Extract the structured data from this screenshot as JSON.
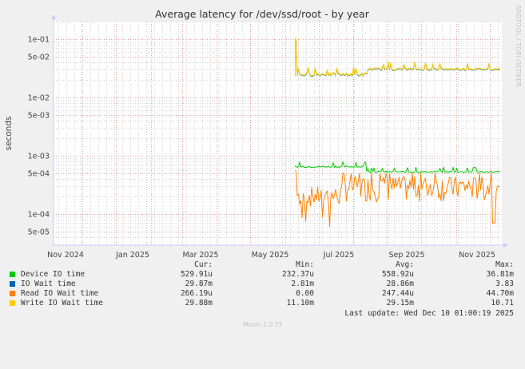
{
  "chart_data": {
    "type": "line",
    "title": "Average latency for /dev/ssd/root - by year",
    "xlabel": "",
    "ylabel": "seconds",
    "yscale": "log",
    "ylim": [
      3e-05,
      0.16
    ],
    "y_ticks": [
      "1e-01",
      "5e-02",
      "1e-02",
      "5e-03",
      "1e-03",
      "5e-04",
      "1e-04",
      "5e-05"
    ],
    "x_ticks": [
      "Nov 2024",
      "Jan 2025",
      "Mar 2025",
      "May 2025",
      "Jul 2025",
      "Sep 2025",
      "Nov 2025"
    ],
    "x_range": [
      "Oct 2024",
      "Dec 2025"
    ],
    "grid": true,
    "legend_position": "bottom",
    "series": [
      {
        "name": "Device IO time",
        "color": "#00cc00",
        "cur": "529.91u",
        "min": "232.37u",
        "avg": "558.92u",
        "max": "36.81m",
        "approx_level": 0.00055,
        "data_start": "late May 2025"
      },
      {
        "name": "IO Wait time",
        "color": "#0066b3",
        "cur": "29.87m",
        "min": "2.81m",
        "avg": "28.86m",
        "max": "3.83",
        "approx_level": 0.029,
        "data_start": "late May 2025"
      },
      {
        "name": "Read IO Wait time",
        "color": "#ff8000",
        "cur": "266.19u",
        "min": "0.00",
        "avg": "247.44u",
        "max": "44.70m",
        "approx_range": [
          6e-05,
          0.0006
        ],
        "data_start": "late May 2025"
      },
      {
        "name": "Write IO Wait time",
        "color": "#ffcc00",
        "cur": "29.88m",
        "min": "11.10m",
        "avg": "29.15m",
        "max": "10.71",
        "approx_level": 0.029,
        "data_start": "late May 2025"
      }
    ]
  },
  "legend": {
    "headers": {
      "cur": "Cur:",
      "min": "Min:",
      "avg": "Avg:",
      "max": "Max:"
    },
    "rows": [
      {
        "name": "Device IO time",
        "color": "#00cc00",
        "cur": "529.91u",
        "min": "232.37u",
        "avg": "558.92u",
        "max": "36.81m"
      },
      {
        "name": "IO Wait time",
        "color": "#0066b3",
        "cur": "29.87m",
        "min": "2.81m",
        "avg": "28.86m",
        "max": "3.83"
      },
      {
        "name": "Read IO Wait time",
        "color": "#ff8000",
        "cur": "266.19u",
        "min": "0.00",
        "avg": "247.44u",
        "max": "44.70m"
      },
      {
        "name": "Write IO Wait time",
        "color": "#ffcc00",
        "cur": "29.88m",
        "min": "11.10m",
        "avg": "29.15m",
        "max": "10.71"
      }
    ]
  },
  "last_update": "Last update: Wed Dec 10 01:00:19 2025",
  "watermark": "RRDTOOL / TOBI OETIKER",
  "footer": "Munin 2.0.73"
}
